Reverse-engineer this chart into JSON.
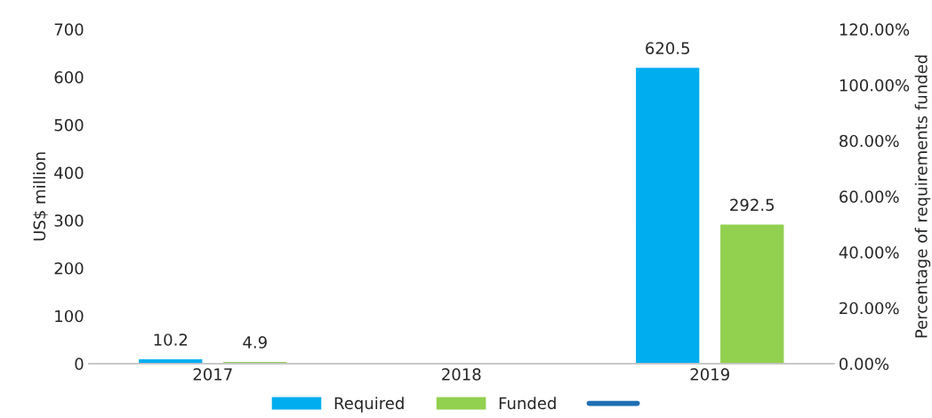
{
  "chart_data": {
    "type": "bar",
    "categories": [
      "2017",
      "2018",
      "2019"
    ],
    "ylabel": "US$ million",
    "y2label": "Percentage of requirements funded",
    "series": [
      {
        "name": "Required",
        "color": "#00aeef",
        "values": [
          10.2,
          null,
          620.5
        ]
      },
      {
        "name": "Funded",
        "color": "#92d050",
        "values": [
          4.9,
          null,
          292.5
        ]
      },
      {
        "type": "line",
        "color": "#1f6fb4",
        "values": [
          null,
          null,
          null
        ]
      }
    ],
    "ylim": [
      0,
      700
    ],
    "yticks": [
      0,
      100,
      200,
      300,
      400,
      500,
      600,
      700
    ],
    "y2lim": [
      0,
      120
    ],
    "y2ticks": [
      {
        "value": 0,
        "label": "0.00%"
      },
      {
        "value": 20,
        "label": "20.00%"
      },
      {
        "value": 40,
        "label": "40.00%"
      },
      {
        "value": 60,
        "label": "60.00%"
      },
      {
        "value": 80,
        "label": "80.00%"
      },
      {
        "value": 100,
        "label": "100.00%"
      },
      {
        "value": 120,
        "label": "120.00%"
      }
    ],
    "data_labels": true,
    "legend": "bottom",
    "grid": false
  }
}
